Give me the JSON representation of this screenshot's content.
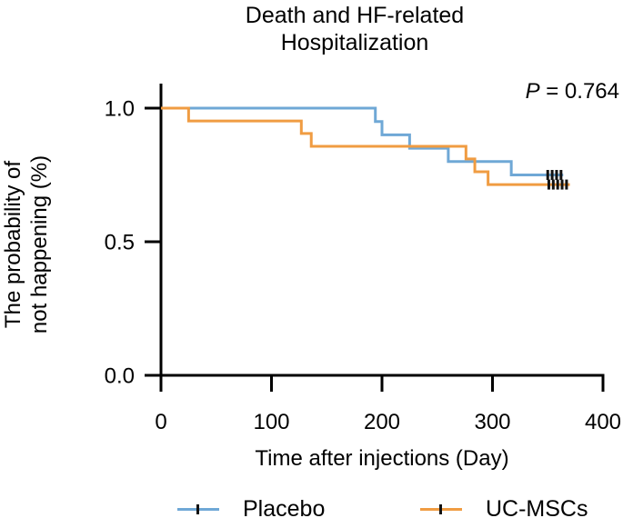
{
  "title": "Death and HF-related\nHospitalization",
  "p_value": {
    "symbol": "P",
    "text": " = 0.764"
  },
  "axes": {
    "x_label": "Time after injections (Day)",
    "y_label": "The probability of\nnot happening (%)",
    "x_ticks": [
      {
        "label": "0",
        "value": 0
      },
      {
        "label": "100",
        "value": 100
      },
      {
        "label": "200",
        "value": 200
      },
      {
        "label": "300",
        "value": 300
      },
      {
        "label": "400",
        "value": 400
      }
    ],
    "y_ticks": [
      {
        "label": "0.0",
        "value": 0.0
      },
      {
        "label": "0.5",
        "value": 0.5
      },
      {
        "label": "1.0",
        "value": 1.0
      }
    ]
  },
  "chart_data": {
    "type": "line",
    "subtype": "kaplan-meier-step",
    "title": "Death and HF-related Hospitalization",
    "xlabel": "Time after injections (Day)",
    "ylabel": "The probability of not happening (%)",
    "xlim": [
      0,
      400
    ],
    "ylim": [
      0,
      1
    ],
    "annotation": "P = 0.764",
    "grid": false,
    "legend_position": "bottom",
    "series": [
      {
        "name": "Placebo",
        "color": "#6FA8D6",
        "step_times": [
          0,
          194,
          200,
          225,
          260,
          317
        ],
        "step_probs": [
          1.0,
          0.95,
          0.9,
          0.85,
          0.8,
          0.75
        ],
        "end_time": 364,
        "censor_times": [
          350,
          354,
          358,
          362
        ]
      },
      {
        "name": "UC-MSCs",
        "color": "#F09C42",
        "step_times": [
          0,
          25,
          127,
          136,
          276,
          284,
          296
        ],
        "step_probs": [
          1.0,
          0.952,
          0.905,
          0.857,
          0.81,
          0.762,
          0.714
        ],
        "end_time": 370,
        "censor_times": [
          351,
          355,
          359,
          363,
          367
        ]
      }
    ]
  },
  "colors": {
    "axis": "#000000",
    "censor": "#121212"
  }
}
